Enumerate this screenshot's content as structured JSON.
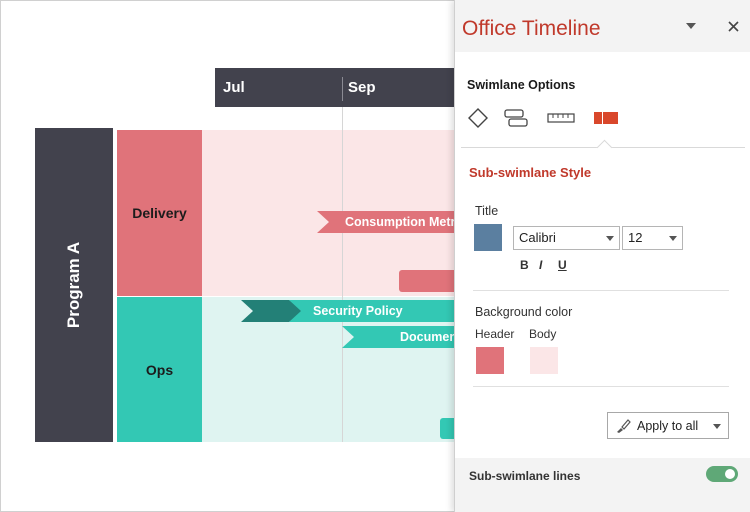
{
  "timeline": {
    "months": [
      "Jul",
      "Sep"
    ],
    "program": "Program A",
    "lanes": [
      {
        "label": "Delivery",
        "header_color": "#e0737a",
        "body_color": "#fbe6e7"
      },
      {
        "label": "Ops",
        "header_color": "#33c8b4",
        "body_color": "#dff4f1"
      }
    ],
    "tasks": [
      {
        "label": "Consumption Metr",
        "color": "#e0737a"
      },
      {
        "label": "",
        "color": "#e0737a"
      },
      {
        "label": "",
        "color": "#238077"
      },
      {
        "label": "Security Policy",
        "color": "#33c8b4"
      },
      {
        "label": "Documen",
        "color": "#33c8b4"
      },
      {
        "label": "",
        "color": "#33c8b4"
      }
    ]
  },
  "pane": {
    "title": "Office Timeline",
    "dropdown_icon": "chevron-down-icon",
    "close_icon": "close-icon",
    "section_title": "Swimlane Options",
    "tabs": [
      "diamond-icon",
      "swimlane-label-icon",
      "ruler-icon",
      "sub-swimlane-icon"
    ],
    "sub_title": "Sub-swimlane Style",
    "title_label": "Title",
    "title_color": "#5b7fa0",
    "font_family": "Calibri",
    "font_size": "12",
    "bold": "B",
    "italic": "I",
    "underline": "U",
    "bg_label": "Background color",
    "header_label": "Header",
    "body_label": "Body",
    "header_color": "#e0737a",
    "body_color": "#fbe6e7",
    "apply_label": "Apply to all",
    "lines_label": "Sub-swimlane lines",
    "lines_enabled": true,
    "accent": "#c0392b"
  }
}
